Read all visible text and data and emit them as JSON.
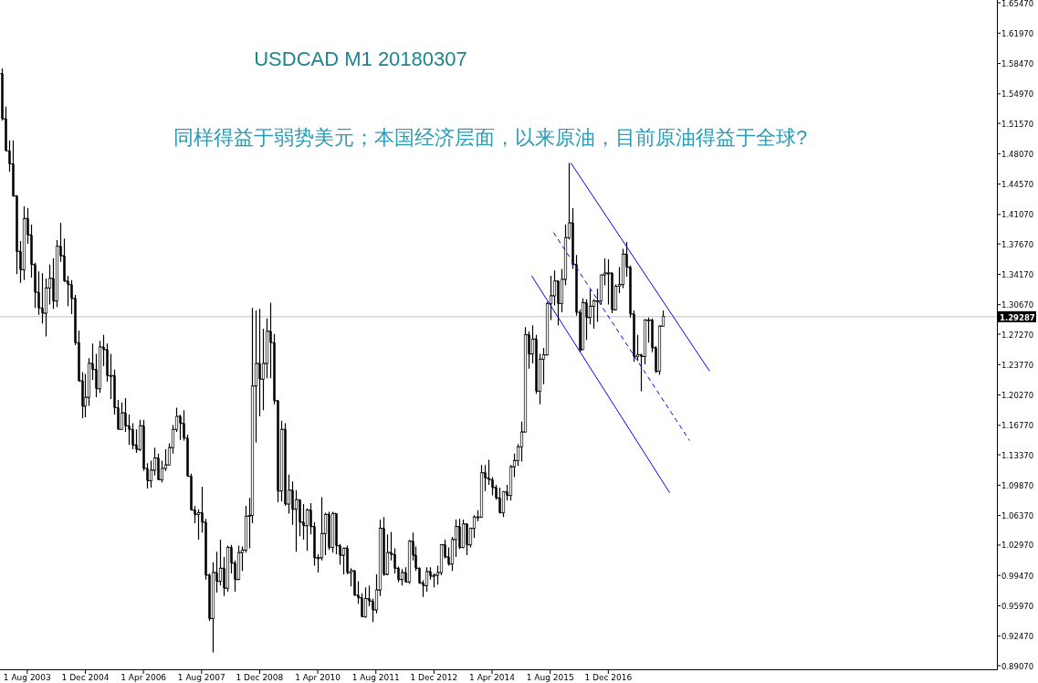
{
  "chart_data": {
    "type": "candlestick",
    "title": "USDCAD M1 20180307",
    "subtitle": "同样得益于弱势美元；本国经济层面，以来原油，目前原油得益于全球?",
    "color": "#000000",
    "x": [
      "2003-01",
      "2003-02",
      "2003-03",
      "2003-04",
      "2003-05",
      "2003-06",
      "2003-07",
      "2003-08",
      "2003-09",
      "2003-10",
      "2003-11",
      "2003-12",
      "2004-01",
      "2004-02",
      "2004-03",
      "2004-04",
      "2004-05",
      "2004-06",
      "2004-07",
      "2004-08",
      "2004-09",
      "2004-10",
      "2004-11",
      "2004-12",
      "2005-01",
      "2005-02",
      "2005-03",
      "2005-04",
      "2005-05",
      "2005-06",
      "2005-07",
      "2005-08",
      "2005-09",
      "2005-10",
      "2005-11",
      "2005-12",
      "2006-01",
      "2006-02",
      "2006-03",
      "2006-04",
      "2006-05",
      "2006-06",
      "2006-07",
      "2006-08",
      "2006-09",
      "2006-10",
      "2006-11",
      "2006-12",
      "2007-01",
      "2007-02",
      "2007-03",
      "2007-04",
      "2007-05",
      "2007-06",
      "2007-07",
      "2007-08",
      "2007-09",
      "2007-10",
      "2007-11",
      "2007-12",
      "2008-01",
      "2008-02",
      "2008-03",
      "2008-04",
      "2008-05",
      "2008-06",
      "2008-07",
      "2008-08",
      "2008-09",
      "2008-10",
      "2008-11",
      "2008-12",
      "2009-01",
      "2009-02",
      "2009-03",
      "2009-04",
      "2009-05",
      "2009-06",
      "2009-07",
      "2009-08",
      "2009-09",
      "2009-10",
      "2009-11",
      "2009-12",
      "2010-01",
      "2010-02",
      "2010-03",
      "2010-04",
      "2010-05",
      "2010-06",
      "2010-07",
      "2010-08",
      "2010-09",
      "2010-10",
      "2010-11",
      "2010-12",
      "2011-01",
      "2011-02",
      "2011-03",
      "2011-04",
      "2011-05",
      "2011-06",
      "2011-07",
      "2011-08",
      "2011-09",
      "2011-10",
      "2011-11",
      "2011-12",
      "2012-01",
      "2012-02",
      "2012-03",
      "2012-04",
      "2012-05",
      "2012-06",
      "2012-07",
      "2012-08",
      "2012-09",
      "2012-10",
      "2012-11",
      "2012-12",
      "2013-01",
      "2013-02",
      "2013-03",
      "2013-04",
      "2013-05",
      "2013-06",
      "2013-07",
      "2013-08",
      "2013-09",
      "2013-10",
      "2013-11",
      "2013-12",
      "2014-01",
      "2014-02",
      "2014-03",
      "2014-04",
      "2014-05",
      "2014-06",
      "2014-07",
      "2014-08",
      "2014-09",
      "2014-10",
      "2014-11",
      "2014-12",
      "2015-01",
      "2015-02",
      "2015-03",
      "2015-04",
      "2015-05",
      "2015-06",
      "2015-07",
      "2015-08",
      "2015-09",
      "2015-10",
      "2015-11",
      "2015-12",
      "2016-01",
      "2016-02",
      "2016-03",
      "2016-04",
      "2016-05",
      "2016-06",
      "2016-07",
      "2016-08",
      "2016-09",
      "2016-10",
      "2016-11",
      "2016-12",
      "2017-01",
      "2017-02",
      "2017-03",
      "2017-04",
      "2017-05",
      "2017-06",
      "2017-07",
      "2017-08",
      "2017-09",
      "2017-10",
      "2017-11",
      "2017-12",
      "2018-01",
      "2018-02",
      "2018-03"
    ],
    "ohlc": [
      [
        1.573,
        1.579,
        1.519,
        1.521
      ],
      [
        1.521,
        1.535,
        1.484,
        1.484
      ],
      [
        1.484,
        1.496,
        1.46,
        1.469
      ],
      [
        1.469,
        1.496,
        1.431,
        1.432
      ],
      [
        1.432,
        1.433,
        1.342,
        1.368
      ],
      [
        1.368,
        1.38,
        1.332,
        1.347
      ],
      [
        1.347,
        1.42,
        1.335,
        1.406
      ],
      [
        1.406,
        1.418,
        1.377,
        1.387
      ],
      [
        1.387,
        1.399,
        1.338,
        1.353
      ],
      [
        1.353,
        1.355,
        1.303,
        1.321
      ],
      [
        1.321,
        1.345,
        1.295,
        1.303
      ],
      [
        1.303,
        1.343,
        1.285,
        1.297
      ],
      [
        1.297,
        1.337,
        1.27,
        1.326
      ],
      [
        1.326,
        1.353,
        1.307,
        1.337
      ],
      [
        1.337,
        1.36,
        1.302,
        1.311
      ],
      [
        1.311,
        1.381,
        1.304,
        1.374
      ],
      [
        1.374,
        1.401,
        1.356,
        1.363
      ],
      [
        1.363,
        1.383,
        1.333,
        1.334
      ],
      [
        1.334,
        1.34,
        1.305,
        1.33
      ],
      [
        1.33,
        1.335,
        1.296,
        1.314
      ],
      [
        1.314,
        1.318,
        1.26,
        1.263
      ],
      [
        1.263,
        1.277,
        1.218,
        1.219
      ],
      [
        1.219,
        1.229,
        1.176,
        1.19
      ],
      [
        1.19,
        1.227,
        1.177,
        1.2
      ],
      [
        1.2,
        1.245,
        1.19,
        1.239
      ],
      [
        1.239,
        1.262,
        1.22,
        1.232
      ],
      [
        1.232,
        1.25,
        1.2,
        1.21
      ],
      [
        1.21,
        1.265,
        1.205,
        1.258
      ],
      [
        1.258,
        1.272,
        1.236,
        1.255
      ],
      [
        1.255,
        1.262,
        1.218,
        1.225
      ],
      [
        1.225,
        1.25,
        1.198,
        1.225
      ],
      [
        1.225,
        1.232,
        1.18,
        1.188
      ],
      [
        1.188,
        1.197,
        1.163,
        1.163
      ],
      [
        1.163,
        1.194,
        1.163,
        1.182
      ],
      [
        1.182,
        1.199,
        1.16,
        1.167
      ],
      [
        1.167,
        1.18,
        1.145,
        1.163
      ],
      [
        1.163,
        1.17,
        1.14,
        1.145
      ],
      [
        1.145,
        1.163,
        1.136,
        1.14
      ],
      [
        1.14,
        1.174,
        1.138,
        1.167
      ],
      [
        1.167,
        1.174,
        1.115,
        1.118
      ],
      [
        1.118,
        1.124,
        1.095,
        1.104
      ],
      [
        1.104,
        1.127,
        1.096,
        1.116
      ],
      [
        1.116,
        1.142,
        1.11,
        1.13
      ],
      [
        1.13,
        1.135,
        1.105,
        1.105
      ],
      [
        1.105,
        1.127,
        1.102,
        1.118
      ],
      [
        1.118,
        1.14,
        1.115,
        1.122
      ],
      [
        1.122,
        1.147,
        1.122,
        1.142
      ],
      [
        1.142,
        1.168,
        1.135,
        1.163
      ],
      [
        1.163,
        1.188,
        1.16,
        1.178
      ],
      [
        1.178,
        1.18,
        1.151,
        1.17
      ],
      [
        1.17,
        1.185,
        1.15,
        1.153
      ],
      [
        1.153,
        1.157,
        1.109,
        1.109
      ],
      [
        1.109,
        1.112,
        1.07,
        1.07
      ],
      [
        1.07,
        1.075,
        1.055,
        1.065
      ],
      [
        1.065,
        1.071,
        1.036,
        1.067
      ],
      [
        1.067,
        1.097,
        1.044,
        1.056
      ],
      [
        1.056,
        1.06,
        0.99,
        0.995
      ],
      [
        0.995,
        0.997,
        0.942,
        0.945
      ],
      [
        0.945,
        1.01,
        0.906,
        0.998
      ],
      [
        0.998,
        1.022,
        0.975,
        0.988
      ],
      [
        0.988,
        1.036,
        0.983,
        1.003
      ],
      [
        1.003,
        1.016,
        0.971,
        0.98
      ],
      [
        0.98,
        1.029,
        0.976,
        1.027
      ],
      [
        1.027,
        1.03,
        0.997,
        1.009
      ],
      [
        1.009,
        1.012,
        0.976,
        0.99
      ],
      [
        0.99,
        1.029,
        0.989,
        1.021
      ],
      [
        1.021,
        1.028,
        1.0,
        1.024
      ],
      [
        1.024,
        1.075,
        1.021,
        1.063
      ],
      [
        1.063,
        1.084,
        1.026,
        1.064
      ],
      [
        1.064,
        1.303,
        1.055,
        1.213
      ],
      [
        1.213,
        1.3,
        1.148,
        1.239
      ],
      [
        1.239,
        1.302,
        1.178,
        1.221
      ],
      [
        1.221,
        1.279,
        1.185,
        1.239
      ],
      [
        1.239,
        1.291,
        1.222,
        1.276
      ],
      [
        1.276,
        1.309,
        1.222,
        1.263
      ],
      [
        1.263,
        1.273,
        1.192,
        1.196
      ],
      [
        1.196,
        1.197,
        1.079,
        1.092
      ],
      [
        1.092,
        1.173,
        1.08,
        1.163
      ],
      [
        1.163,
        1.17,
        1.075,
        1.077
      ],
      [
        1.077,
        1.111,
        1.066,
        1.093
      ],
      [
        1.093,
        1.103,
        1.053,
        1.071
      ],
      [
        1.071,
        1.093,
        1.022,
        1.082
      ],
      [
        1.082,
        1.082,
        1.04,
        1.056
      ],
      [
        1.056,
        1.077,
        1.036,
        1.052
      ],
      [
        1.052,
        1.072,
        1.023,
        1.07
      ],
      [
        1.07,
        1.078,
        1.042,
        1.051
      ],
      [
        1.051,
        1.056,
        1.006,
        1.015
      ],
      [
        1.015,
        1.019,
        0.998,
        1.015
      ],
      [
        1.015,
        1.085,
        1.012,
        1.043
      ],
      [
        1.043,
        1.067,
        1.018,
        1.065
      ],
      [
        1.065,
        1.068,
        1.024,
        1.027
      ],
      [
        1.027,
        1.068,
        1.021,
        1.066
      ],
      [
        1.066,
        1.066,
        1.019,
        1.029
      ],
      [
        1.029,
        1.031,
        1.007,
        1.018
      ],
      [
        1.018,
        1.027,
        0.996,
        1.026
      ],
      [
        1.026,
        1.029,
        0.996,
        0.998
      ],
      [
        0.998,
        1.003,
        0.982,
        1.0
      ],
      [
        1.0,
        1.001,
        0.971,
        0.972
      ],
      [
        0.972,
        0.988,
        0.962,
        0.969
      ],
      [
        0.969,
        0.974,
        0.947,
        0.947
      ],
      [
        0.947,
        0.981,
        0.946,
        0.968
      ],
      [
        0.968,
        0.983,
        0.959,
        0.965
      ],
      [
        0.965,
        0.968,
        0.941,
        0.955
      ],
      [
        0.955,
        0.996,
        0.951,
        0.978
      ],
      [
        0.978,
        1.059,
        0.971,
        1.049
      ],
      [
        1.049,
        1.062,
        0.994,
        0.996
      ],
      [
        0.996,
        1.042,
        0.995,
        1.021
      ],
      [
        1.021,
        1.045,
        1.012,
        1.019
      ],
      [
        1.019,
        1.026,
        0.997,
        1.003
      ],
      [
        1.003,
        1.005,
        0.987,
        0.99
      ],
      [
        0.99,
        1.002,
        0.983,
        0.998
      ],
      [
        0.998,
        1.004,
        0.987,
        0.987
      ],
      [
        0.987,
        1.036,
        0.985,
        1.034
      ],
      [
        1.034,
        1.044,
        1.012,
        1.018
      ],
      [
        1.018,
        1.028,
        1.0,
        1.003
      ],
      [
        1.003,
        1.004,
        0.985,
        0.986
      ],
      [
        0.986,
        0.989,
        0.97,
        0.983
      ],
      [
        0.983,
        1.004,
        0.976,
        0.999
      ],
      [
        0.999,
        1.004,
        0.99,
        0.994
      ],
      [
        0.994,
        0.997,
        0.981,
        0.995
      ],
      [
        0.995,
        1.006,
        0.984,
        0.998
      ],
      [
        0.998,
        1.03,
        0.995,
        1.03
      ],
      [
        1.03,
        1.036,
        1.014,
        1.016
      ],
      [
        1.016,
        1.027,
        1.006,
        1.008
      ],
      [
        1.008,
        1.039,
        1.0,
        1.036
      ],
      [
        1.036,
        1.059,
        1.016,
        1.051
      ],
      [
        1.051,
        1.06,
        1.025,
        1.027
      ],
      [
        1.027,
        1.059,
        1.026,
        1.054
      ],
      [
        1.054,
        1.055,
        1.018,
        1.03
      ],
      [
        1.03,
        1.05,
        1.027,
        1.049
      ],
      [
        1.049,
        1.064,
        1.038,
        1.062
      ],
      [
        1.062,
        1.07,
        1.057,
        1.062
      ],
      [
        1.062,
        1.122,
        1.061,
        1.113
      ],
      [
        1.113,
        1.122,
        1.092,
        1.107
      ],
      [
        1.107,
        1.128,
        1.099,
        1.105
      ],
      [
        1.105,
        1.108,
        1.087,
        1.096
      ],
      [
        1.096,
        1.099,
        1.082,
        1.084
      ],
      [
        1.084,
        1.096,
        1.066,
        1.067
      ],
      [
        1.067,
        1.092,
        1.062,
        1.091
      ],
      [
        1.091,
        1.099,
        1.081,
        1.087
      ],
      [
        1.087,
        1.122,
        1.081,
        1.12
      ],
      [
        1.12,
        1.135,
        1.108,
        1.127
      ],
      [
        1.127,
        1.146,
        1.121,
        1.143
      ],
      [
        1.143,
        1.172,
        1.126,
        1.16
      ],
      [
        1.16,
        1.281,
        1.16,
        1.272
      ],
      [
        1.272,
        1.276,
        1.233,
        1.25
      ],
      [
        1.25,
        1.283,
        1.239,
        1.267
      ],
      [
        1.267,
        1.272,
        1.204,
        1.207
      ],
      [
        1.207,
        1.25,
        1.192,
        1.244
      ],
      [
        1.244,
        1.257,
        1.215,
        1.249
      ],
      [
        1.249,
        1.31,
        1.248,
        1.308
      ],
      [
        1.308,
        1.34,
        1.289,
        1.317
      ],
      [
        1.317,
        1.346,
        1.306,
        1.334
      ],
      [
        1.334,
        1.335,
        1.283,
        1.308
      ],
      [
        1.308,
        1.348,
        1.298,
        1.336
      ],
      [
        1.336,
        1.399,
        1.329,
        1.384
      ],
      [
        1.384,
        1.47,
        1.382,
        1.401
      ],
      [
        1.401,
        1.418,
        1.348,
        1.353
      ],
      [
        1.353,
        1.364,
        1.294,
        1.298
      ],
      [
        1.298,
        1.301,
        1.252,
        1.255
      ],
      [
        1.255,
        1.314,
        1.255,
        1.309
      ],
      [
        1.309,
        1.313,
        1.266,
        1.292
      ],
      [
        1.292,
        1.324,
        1.284,
        1.305
      ],
      [
        1.305,
        1.313,
        1.279,
        1.311
      ],
      [
        1.311,
        1.325,
        1.287,
        1.311
      ],
      [
        1.311,
        1.341,
        1.307,
        1.341
      ],
      [
        1.341,
        1.36,
        1.329,
        1.343
      ],
      [
        1.343,
        1.359,
        1.307,
        1.343
      ],
      [
        1.343,
        1.344,
        1.297,
        1.301
      ],
      [
        1.301,
        1.33,
        1.3,
        1.328
      ],
      [
        1.328,
        1.35,
        1.32,
        1.33
      ],
      [
        1.33,
        1.371,
        1.326,
        1.365
      ],
      [
        1.365,
        1.379,
        1.339,
        1.35
      ],
      [
        1.35,
        1.352,
        1.292,
        1.296
      ],
      [
        1.296,
        1.3,
        1.241,
        1.247
      ],
      [
        1.247,
        1.272,
        1.242,
        1.249
      ],
      [
        1.249,
        1.25,
        1.207,
        1.247
      ],
      [
        1.247,
        1.29,
        1.238,
        1.289
      ],
      [
        1.289,
        1.292,
        1.263,
        1.289
      ],
      [
        1.289,
        1.291,
        1.252,
        1.257
      ],
      [
        1.257,
        1.259,
        1.228,
        1.23
      ],
      [
        1.23,
        1.283,
        1.226,
        1.282
      ],
      [
        1.282,
        1.3,
        1.282,
        1.293
      ]
    ],
    "series": [
      {
        "type": "line",
        "color": "#0000ff",
        "line_style": "solid",
        "x": [
          "2016-01-22",
          "2019-03-28"
        ],
        "values": [
          1.47,
          1.23
        ]
      },
      {
        "type": "line",
        "color": "#0000ff",
        "line_style": "solid",
        "x": [
          "2015-02-28",
          "2018-04-28"
        ],
        "values": [
          1.34,
          1.09
        ]
      },
      {
        "type": "line",
        "color": "#0000ff",
        "line_style": "dashed",
        "x": [
          "2015-08-28",
          "2018-10-13"
        ],
        "values": [
          1.39,
          1.15
        ]
      }
    ],
    "ref_lines": [
      {
        "axis": "y",
        "value": 1.29287,
        "label": "1.29287",
        "color": "#c0c0c0"
      }
    ],
    "xlim": [
      "2002-12-16",
      "2025-11-01"
    ],
    "xticks": [
      {
        "value": "2003-08",
        "label": "1 Aug 2003"
      },
      {
        "value": "2004-12",
        "label": "1 Dec 2004"
      },
      {
        "value": "2006-04",
        "label": "1 Apr 2006"
      },
      {
        "value": "2007-08",
        "label": "1 Aug 2007"
      },
      {
        "value": "2008-12",
        "label": "1 Dec 2008"
      },
      {
        "value": "2010-04",
        "label": "1 Apr 2010"
      },
      {
        "value": "2011-08",
        "label": "1 Aug 2011"
      },
      {
        "value": "2012-12",
        "label": "1 Dec 2012"
      },
      {
        "value": "2014-04",
        "label": "1 Apr 2014"
      },
      {
        "value": "2015-08",
        "label": "1 Aug 2015"
      },
      {
        "value": "2016-12",
        "label": "1 Dec 2016"
      }
    ],
    "ylim": [
      0.8865,
      1.6579
    ],
    "yticks": [
      {
        "value": 1.6547,
        "label": "1.65470"
      },
      {
        "value": 1.6197,
        "label": "1.61970"
      },
      {
        "value": 1.5847,
        "label": "1.58470"
      },
      {
        "value": 1.5497,
        "label": "1.54970"
      },
      {
        "value": 1.5157,
        "label": "1.51570"
      },
      {
        "value": 1.4807,
        "label": "1.48070"
      },
      {
        "value": 1.4457,
        "label": "1.44570"
      },
      {
        "value": 1.4107,
        "label": "1.41070"
      },
      {
        "value": 1.3767,
        "label": "1.37670"
      },
      {
        "value": 1.3417,
        "label": "1.34170"
      },
      {
        "value": 1.3067,
        "label": "1.30670"
      },
      {
        "value": 1.2727,
        "label": "1.27270"
      },
      {
        "value": 1.2377,
        "label": "1.23770"
      },
      {
        "value": 1.2027,
        "label": "1.20270"
      },
      {
        "value": 1.1677,
        "label": "1.16770"
      },
      {
        "value": 1.1337,
        "label": "1.13370"
      },
      {
        "value": 1.0987,
        "label": "1.09870"
      },
      {
        "value": 1.0637,
        "label": "1.06370"
      },
      {
        "value": 1.0297,
        "label": "1.02970"
      },
      {
        "value": 0.9947,
        "label": "0.99470"
      },
      {
        "value": 0.9597,
        "label": "0.95970"
      },
      {
        "value": 0.9247,
        "label": "0.92470"
      },
      {
        "value": 0.8907,
        "label": "0.89070"
      }
    ]
  }
}
